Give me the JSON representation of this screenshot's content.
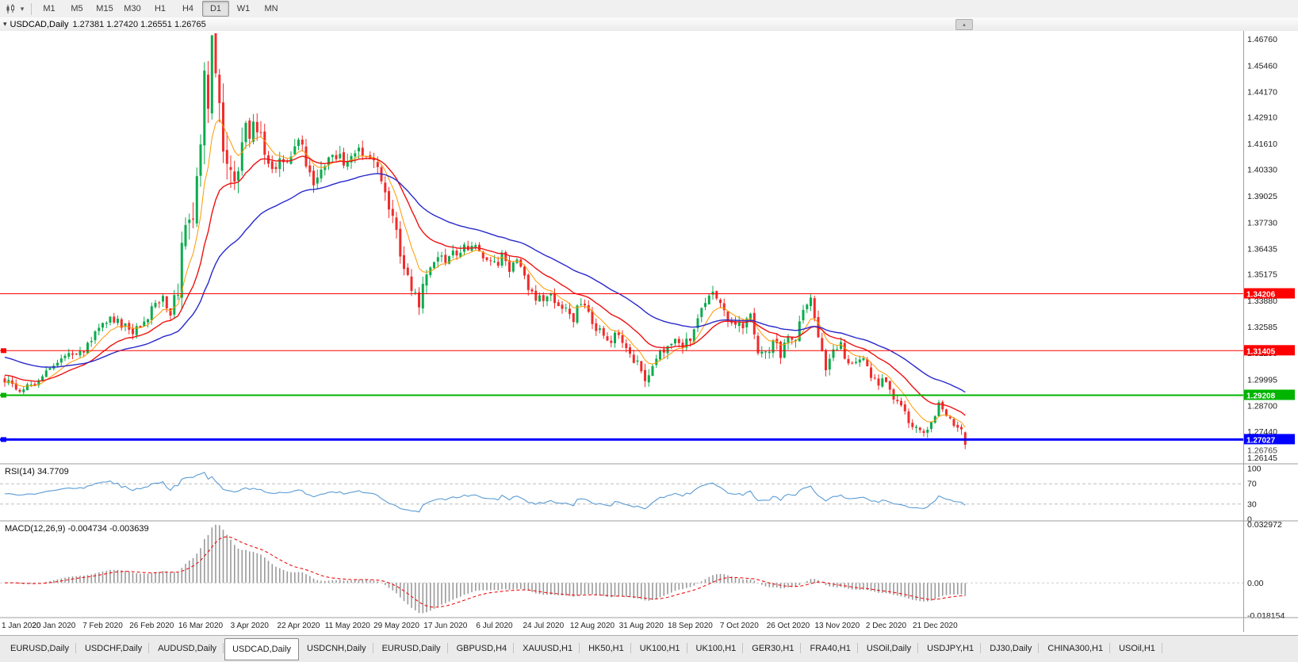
{
  "icons": {
    "chart_type": "candlestick-chart-icon",
    "dropdown_caret": "▾",
    "collapse": "▾",
    "scroll_up": "▴"
  },
  "toolbar": {
    "timeframes": [
      "M1",
      "M5",
      "M15",
      "M30",
      "H1",
      "H4",
      "D1",
      "W1",
      "MN"
    ],
    "active_timeframe": "D1"
  },
  "chart_header": {
    "symbol": "USDCAD,Daily",
    "ohlc_display": "1.27381 1.27420 1.26551 1.26765"
  },
  "chart_data": {
    "type": "candlestick",
    "symbol": "USDCAD",
    "timeframe": "Daily",
    "days": 256,
    "ohlc": {
      "o": 1.27381,
      "h": 1.2742,
      "l": 1.26551,
      "c": 1.26765
    },
    "ylim": [
      1.26145,
      1.4676
    ],
    "colors": {
      "bull": "#0cab4e",
      "bear": "#f02c2c"
    },
    "y_axis_labels": [
      "1.46760",
      "1.45460",
      "1.44170",
      "1.42910",
      "1.41610",
      "1.40330",
      "1.39025",
      "1.37730",
      "1.36435",
      "1.35175",
      "1.33880",
      "1.32585",
      "1.31290",
      "1.29995",
      "1.28700",
      "1.27440",
      "1.26145"
    ],
    "x_axis": {
      "day_step": 13,
      "labels": [
        "1 Jan 2020",
        "20 Jan 2020",
        "7 Feb 2020",
        "26 Feb 2020",
        "16 Mar 2020",
        "3 Apr 2020",
        "22 Apr 2020",
        "11 May 2020",
        "29 May 2020",
        "17 Jun 2020",
        "6 Jul 2020",
        "24 Jul 2020",
        "12 Aug 2020",
        "31 Aug 2020",
        "18 Sep 2020",
        "7 Oct 2020",
        "26 Oct 2020",
        "13 Nov 2020",
        "2 Dec 2020",
        "21 Dec 2020"
      ]
    },
    "price_anchors": [
      [
        0,
        1.299
      ],
      [
        4,
        1.2955
      ],
      [
        8,
        1.2985
      ],
      [
        13,
        1.307
      ],
      [
        18,
        1.312
      ],
      [
        22,
        1.316
      ],
      [
        26,
        1.329
      ],
      [
        30,
        1.329
      ],
      [
        33,
        1.3235
      ],
      [
        36,
        1.325
      ],
      [
        39,
        1.334
      ],
      [
        42,
        1.339
      ],
      [
        44,
        1.333
      ],
      [
        46,
        1.342
      ],
      [
        47,
        1.365
      ],
      [
        48,
        1.373
      ],
      [
        50,
        1.381
      ],
      [
        52,
        1.42
      ],
      [
        53,
        1.45
      ],
      [
        54,
        1.431
      ],
      [
        55,
        1.464
      ],
      [
        56,
        1.443
      ],
      [
        57,
        1.434
      ],
      [
        58,
        1.41
      ],
      [
        60,
        1.398
      ],
      [
        62,
        1.406
      ],
      [
        64,
        1.422
      ],
      [
        67,
        1.426
      ],
      [
        70,
        1.408
      ],
      [
        72,
        1.403
      ],
      [
        75,
        1.409
      ],
      [
        78,
        1.416
      ],
      [
        80,
        1.408
      ],
      [
        82,
        1.398
      ],
      [
        85,
        1.405
      ],
      [
        88,
        1.41
      ],
      [
        91,
        1.404
      ],
      [
        94,
        1.411
      ],
      [
        97,
        1.408
      ],
      [
        100,
        1.398
      ],
      [
        103,
        1.378
      ],
      [
        105,
        1.362
      ],
      [
        107,
        1.352
      ],
      [
        109,
        1.34
      ],
      [
        110,
        1.336
      ],
      [
        111,
        1.348
      ],
      [
        113,
        1.356
      ],
      [
        115,
        1.362
      ],
      [
        117,
        1.358
      ],
      [
        119,
        1.362
      ],
      [
        121,
        1.365
      ],
      [
        123,
        1.362
      ],
      [
        125,
        1.364
      ],
      [
        127,
        1.358
      ],
      [
        130,
        1.356
      ],
      [
        132,
        1.36
      ],
      [
        134,
        1.354
      ],
      [
        136,
        1.358
      ],
      [
        138,
        1.35
      ],
      [
        140,
        1.341
      ],
      [
        143,
        1.34
      ],
      [
        145,
        1.342
      ],
      [
        147,
        1.338
      ],
      [
        149,
        1.334
      ],
      [
        151,
        1.33
      ],
      [
        153,
        1.339
      ],
      [
        155,
        1.332
      ],
      [
        157,
        1.325
      ],
      [
        159,
        1.322
      ],
      [
        161,
        1.318
      ],
      [
        163,
        1.323
      ],
      [
        165,
        1.316
      ],
      [
        167,
        1.309
      ],
      [
        169,
        1.304
      ],
      [
        170,
        1.3
      ],
      [
        172,
        1.306
      ],
      [
        174,
        1.313
      ],
      [
        176,
        1.316
      ],
      [
        178,
        1.318
      ],
      [
        180,
        1.316
      ],
      [
        182,
        1.32
      ],
      [
        184,
        1.329
      ],
      [
        186,
        1.338
      ],
      [
        188,
        1.342
      ],
      [
        190,
        1.338
      ],
      [
        192,
        1.331
      ],
      [
        194,
        1.328
      ],
      [
        196,
        1.326
      ],
      [
        198,
        1.331
      ],
      [
        200,
        1.314
      ],
      [
        202,
        1.312
      ],
      [
        204,
        1.318
      ],
      [
        206,
        1.313
      ],
      [
        208,
        1.323
      ],
      [
        210,
        1.32
      ],
      [
        212,
        1.332
      ],
      [
        214,
        1.339
      ],
      [
        216,
        1.318
      ],
      [
        218,
        1.306
      ],
      [
        220,
        1.313
      ],
      [
        222,
        1.316
      ],
      [
        224,
        1.309
      ],
      [
        226,
        1.307
      ],
      [
        228,
        1.31
      ],
      [
        230,
        1.301
      ],
      [
        232,
        1.299
      ],
      [
        234,
        1.3
      ],
      [
        236,
        1.292
      ],
      [
        238,
        1.286
      ],
      [
        240,
        1.28
      ],
      [
        242,
        1.277
      ],
      [
        244,
        1.274
      ],
      [
        246,
        1.278
      ],
      [
        248,
        1.287
      ],
      [
        250,
        1.283
      ],
      [
        252,
        1.278
      ],
      [
        254,
        1.274
      ],
      [
        255,
        1.26765
      ]
    ],
    "volatility_anchors": [
      [
        0,
        0.004
      ],
      [
        30,
        0.0045
      ],
      [
        44,
        0.007
      ],
      [
        48,
        0.014
      ],
      [
        52,
        0.02
      ],
      [
        57,
        0.022
      ],
      [
        62,
        0.014
      ],
      [
        70,
        0.011
      ],
      [
        80,
        0.009
      ],
      [
        95,
        0.008
      ],
      [
        105,
        0.009
      ],
      [
        115,
        0.007
      ],
      [
        130,
        0.006
      ],
      [
        150,
        0.0055
      ],
      [
        170,
        0.006
      ],
      [
        185,
        0.0055
      ],
      [
        200,
        0.006
      ],
      [
        215,
        0.006
      ],
      [
        230,
        0.005
      ],
      [
        245,
        0.0045
      ],
      [
        255,
        0.005
      ]
    ],
    "moving_averages": [
      {
        "name": "fast-ma",
        "period": 8,
        "color": "#ff9900",
        "width": 1,
        "init_offset": 0
      },
      {
        "name": "medium-ma",
        "period": 20,
        "color": "#ee1111",
        "width": 1.4,
        "init_offset": 0.004
      },
      {
        "name": "slow-ma",
        "period": 45,
        "color": "#2929cc",
        "width": 1.4,
        "init_offset": 0.013
      }
    ],
    "hlines": [
      {
        "price": 1.34206,
        "color": "#ff0000",
        "width": 1,
        "label": "1.34206",
        "handle": false
      },
      {
        "price": 1.31405,
        "color": "#ff0000",
        "width": 1,
        "label": "1.31405",
        "handle": true
      },
      {
        "price": 1.29208,
        "color": "#00b400",
        "width": 2,
        "label": "1.29208",
        "handle": true
      },
      {
        "price": 1.27027,
        "color": "#0000ff",
        "width": 3,
        "label": "1.27027",
        "handle": true
      }
    ],
    "current_price": {
      "price": 1.26765,
      "label": "1.26765"
    },
    "indicators": {
      "rsi": {
        "label": "RSI(14) 34.7709",
        "period": 14,
        "value": 34.7709,
        "levels": [
          100,
          70,
          30,
          0
        ],
        "dashed_levels": [
          70,
          30
        ],
        "color": "#5a9bd4"
      },
      "macd": {
        "label": "MACD(12,26,9) -0.004734 -0.003639",
        "values": [
          -0.004734,
          -0.003639
        ],
        "ylim": [
          -0.018154,
          0.032972
        ],
        "scale_labels": [
          {
            "value": 0.032972,
            "label": "0.032972"
          },
          {
            "value": 0,
            "label": "0.00"
          },
          {
            "value": -0.018154,
            "label": "-0.018154"
          }
        ],
        "bar_color": "#9a9a9a",
        "signal_color": "#ee1111"
      }
    }
  },
  "tabs": {
    "items": [
      "EURUSD,Daily",
      "USDCHF,Daily",
      "AUDUSD,Daily",
      "USDCAD,Daily",
      "USDCNH,Daily",
      "EURUSD,Daily",
      "GBPUSD,H4",
      "XAUUSD,H1",
      "HK50,H1",
      "UK100,H1",
      "UK100,H1",
      "GER30,H1",
      "FRA40,H1",
      "USOil,Daily",
      "USDJPY,H1",
      "DJ30,Daily",
      "CHINA300,H1",
      "USOil,H1"
    ],
    "active_index": 3
  }
}
